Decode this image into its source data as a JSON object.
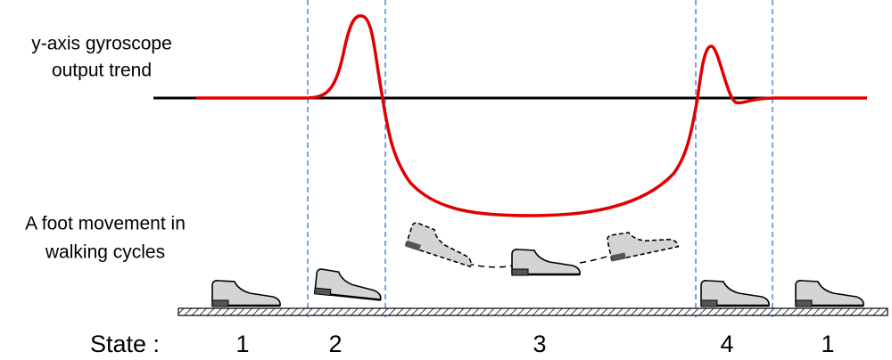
{
  "labels": {
    "gyro": [
      "y-axis gyroscope",
      "output trend"
    ],
    "foot": [
      "A foot movement in",
      "walking cycles"
    ]
  },
  "states": {
    "title": "State :",
    "items": [
      "1",
      "2",
      "3",
      "4",
      "1"
    ]
  }
}
